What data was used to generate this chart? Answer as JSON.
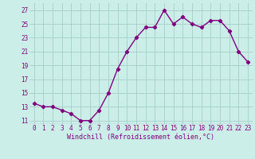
{
  "x": [
    0,
    1,
    2,
    3,
    4,
    5,
    6,
    7,
    8,
    9,
    10,
    11,
    12,
    13,
    14,
    15,
    16,
    17,
    18,
    19,
    20,
    21,
    22,
    23
  ],
  "y": [
    13.5,
    13.0,
    13.0,
    12.5,
    12.0,
    11.0,
    11.0,
    12.5,
    15.0,
    18.5,
    21.0,
    23.0,
    24.5,
    24.5,
    27.0,
    25.0,
    26.0,
    25.0,
    24.5,
    25.5,
    25.5,
    24.0,
    21.0,
    19.5
  ],
  "line_color": "#800080",
  "marker": "D",
  "markersize": 2.2,
  "linewidth": 1.0,
  "xlabel": "Windchill (Refroidissement éolien,°C)",
  "xlabel_fontsize": 6,
  "ytick_values": [
    11,
    13,
    15,
    17,
    19,
    21,
    23,
    25,
    27
  ],
  "xtick_labels": [
    "0",
    "1",
    "2",
    "3",
    "4",
    "5",
    "6",
    "7",
    "8",
    "9",
    "10",
    "11",
    "12",
    "13",
    "14",
    "15",
    "16",
    "17",
    "18",
    "19",
    "20",
    "21",
    "22",
    "23"
  ],
  "ylim": [
    10.5,
    28.0
  ],
  "xlim": [
    -0.5,
    23.5
  ],
  "bg_color": "#cceee8",
  "grid_color": "#aad4ce",
  "tick_fontsize": 5.5,
  "purple": "#800080"
}
